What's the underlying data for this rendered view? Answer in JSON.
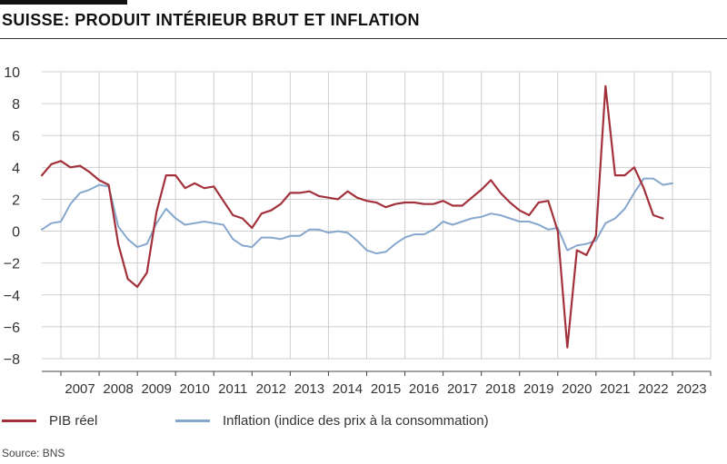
{
  "title": "SUISSE: PRODUIT INTÉRIEUR BRUT ET INFLATION",
  "source": "Source: BNS",
  "colors": {
    "pib": "#a3313b",
    "inflation": "#86a8cc",
    "grid": "#cfcfcf",
    "axis": "#444444"
  },
  "legend": [
    {
      "name": "PIB réel"
    },
    {
      "name": "Inflation (indice des prix à la consommation)"
    }
  ],
  "chart_data": {
    "type": "line",
    "xlim": [
      2006.5,
      2024.0
    ],
    "ylim": [
      -8,
      10
    ],
    "yticks": [
      10,
      8,
      6,
      4,
      2,
      0,
      -2,
      -4,
      -6,
      -8
    ],
    "xticks": [
      2007,
      2008,
      2009,
      2010,
      2011,
      2012,
      2013,
      2014,
      2015,
      2016,
      2017,
      2018,
      2019,
      2020,
      2021,
      2022,
      2023
    ],
    "grid": true,
    "legend_position": "bottom",
    "series": [
      {
        "name": "PIB réel",
        "x": [
          2006.5,
          2006.75,
          2007.0,
          2007.25,
          2007.5,
          2007.75,
          2008.0,
          2008.25,
          2008.5,
          2008.75,
          2009.0,
          2009.25,
          2009.5,
          2009.75,
          2010.0,
          2010.25,
          2010.5,
          2010.75,
          2011.0,
          2011.25,
          2011.5,
          2011.75,
          2012.0,
          2012.25,
          2012.5,
          2012.75,
          2013.0,
          2013.25,
          2013.5,
          2013.75,
          2014.0,
          2014.25,
          2014.5,
          2014.75,
          2015.0,
          2015.25,
          2015.5,
          2015.75,
          2016.0,
          2016.25,
          2016.5,
          2016.75,
          2017.0,
          2017.25,
          2017.5,
          2017.75,
          2018.0,
          2018.25,
          2018.5,
          2018.75,
          2019.0,
          2019.25,
          2019.5,
          2019.75,
          2020.0,
          2020.25,
          2020.5,
          2020.75,
          2021.0,
          2021.25,
          2021.5,
          2021.75,
          2022.0,
          2022.25,
          2022.5,
          2022.75,
          2023.0
        ],
        "values": [
          3.5,
          4.2,
          4.4,
          4.0,
          4.1,
          3.7,
          3.2,
          2.9,
          -0.8,
          -3.0,
          -3.5,
          -2.6,
          1.2,
          3.5,
          3.5,
          2.7,
          3.0,
          2.7,
          2.8,
          1.9,
          1.0,
          0.8,
          0.2,
          1.1,
          1.3,
          1.7,
          2.4,
          2.4,
          2.5,
          2.2,
          2.1,
          2.0,
          2.5,
          2.1,
          1.9,
          1.8,
          1.5,
          1.7,
          1.8,
          1.8,
          1.7,
          1.7,
          1.9,
          1.6,
          1.6,
          2.1,
          2.6,
          3.2,
          2.4,
          1.8,
          1.3,
          1.0,
          1.8,
          1.9,
          0.0,
          -7.3,
          -1.2,
          -1.5,
          -0.3,
          9.1,
          3.5,
          3.5,
          4.0,
          2.7,
          1.0,
          0.8,
          null
        ]
      },
      {
        "name": "Inflation (indice des prix à la consommation)",
        "x": [
          2006.5,
          2006.75,
          2007.0,
          2007.25,
          2007.5,
          2007.75,
          2008.0,
          2008.25,
          2008.5,
          2008.75,
          2009.0,
          2009.25,
          2009.5,
          2009.75,
          2010.0,
          2010.25,
          2010.5,
          2010.75,
          2011.0,
          2011.25,
          2011.5,
          2011.75,
          2012.0,
          2012.25,
          2012.5,
          2012.75,
          2013.0,
          2013.25,
          2013.5,
          2013.75,
          2014.0,
          2014.25,
          2014.5,
          2014.75,
          2015.0,
          2015.25,
          2015.5,
          2015.75,
          2016.0,
          2016.25,
          2016.5,
          2016.75,
          2017.0,
          2017.25,
          2017.5,
          2017.75,
          2018.0,
          2018.25,
          2018.5,
          2018.75,
          2019.0,
          2019.25,
          2019.5,
          2019.75,
          2020.0,
          2020.25,
          2020.5,
          2020.75,
          2021.0,
          2021.25,
          2021.5,
          2021.75,
          2022.0,
          2022.25,
          2022.5,
          2022.75,
          2023.0
        ],
        "values": [
          0.1,
          0.5,
          0.6,
          1.7,
          2.4,
          2.6,
          2.9,
          2.8,
          0.3,
          -0.5,
          -1.0,
          -0.8,
          0.5,
          1.4,
          0.8,
          0.4,
          0.5,
          0.6,
          0.5,
          0.4,
          -0.5,
          -0.9,
          -1.0,
          -0.4,
          -0.4,
          -0.5,
          -0.3,
          -0.3,
          0.1,
          0.1,
          -0.1,
          0.0,
          -0.1,
          -0.6,
          -1.2,
          -1.4,
          -1.3,
          -0.8,
          -0.4,
          -0.2,
          -0.2,
          0.1,
          0.6,
          0.4,
          0.6,
          0.8,
          0.9,
          1.1,
          1.0,
          0.8,
          0.6,
          0.6,
          0.4,
          0.1,
          0.2,
          -1.2,
          -0.9,
          -0.8,
          -0.6,
          0.5,
          0.8,
          1.4,
          2.4,
          3.3,
          3.3,
          2.9,
          3.0
        ]
      }
    ]
  }
}
